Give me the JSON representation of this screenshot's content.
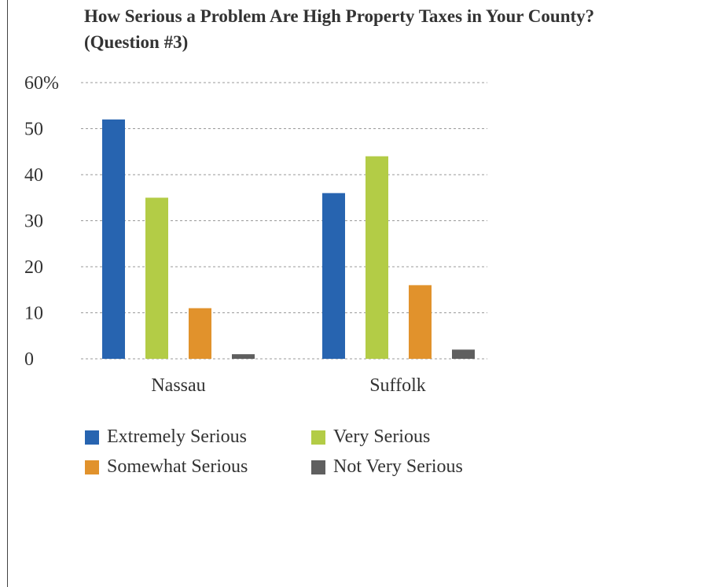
{
  "chart_data": {
    "type": "bar",
    "title": "How Serious a Problem Are High Property Taxes in Your County? (Question #3)",
    "title_line1": "How Serious a Problem Are High Property Taxes in Your County?",
    "title_line2": "(Question #3)",
    "categories": [
      "Nassau",
      "Suffolk"
    ],
    "series": [
      {
        "name": "Extremely Serious",
        "color": "#2764b0",
        "values": [
          52,
          36
        ]
      },
      {
        "name": "Very Serious",
        "color": "#b3cc46",
        "values": [
          35,
          44
        ]
      },
      {
        "name": "Somewhat Serious",
        "color": "#e1922c",
        "values": [
          11,
          16
        ]
      },
      {
        "name": "Not Very Serious",
        "color": "#5f5f5f",
        "values": [
          1,
          2
        ]
      }
    ],
    "yticks": [
      {
        "value": 0,
        "label": "0"
      },
      {
        "value": 10,
        "label": "10"
      },
      {
        "value": 20,
        "label": "20"
      },
      {
        "value": 30,
        "label": "30"
      },
      {
        "value": 40,
        "label": "40"
      },
      {
        "value": 50,
        "label": "50"
      },
      {
        "value": 60,
        "label": "60%"
      }
    ],
    "ylim": [
      0,
      60
    ],
    "grid": true,
    "legend_position": "bottom",
    "xlabel": "",
    "ylabel": ""
  }
}
